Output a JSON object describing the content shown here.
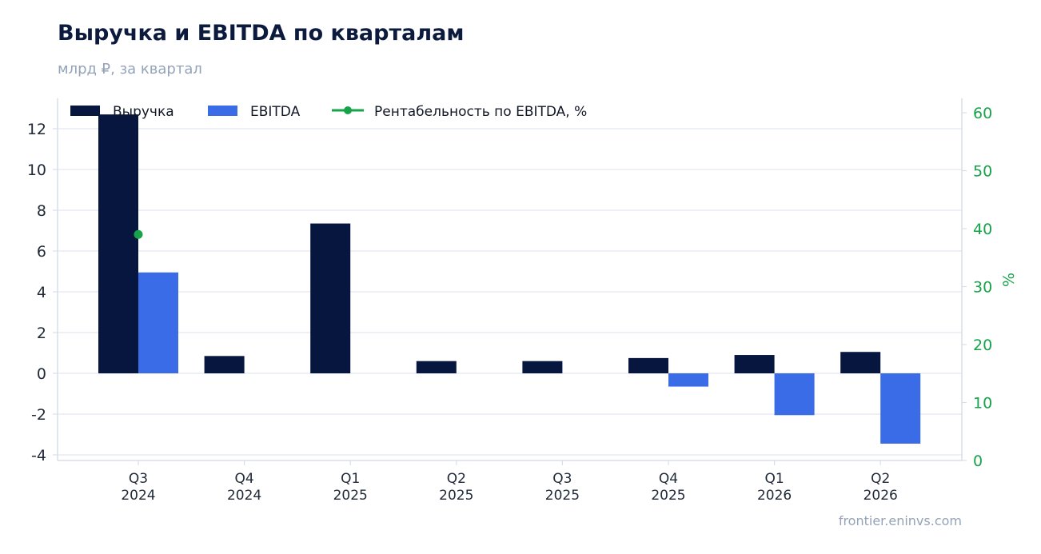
{
  "header": {
    "title": "Выручка и EBITDA по кварталам",
    "subtitle": "млрд ₽, за квартал"
  },
  "footer": {
    "source": "frontier.eninvs.com"
  },
  "colors": {
    "revenue": "#06163f",
    "ebitda": "#3b6ce8",
    "margin": "#16a34a",
    "grid": "#e2e8f0",
    "axis": "#d8dee9",
    "tick_left": "#1f2937",
    "tick_right": "#16a34a"
  },
  "chart_data": {
    "type": "bar",
    "categories": [
      [
        "Q3",
        "2024"
      ],
      [
        "Q4",
        "2024"
      ],
      [
        "Q1",
        "2025"
      ],
      [
        "Q2",
        "2025"
      ],
      [
        "Q3",
        "2025"
      ],
      [
        "Q4",
        "2025"
      ],
      [
        "Q1",
        "2026"
      ],
      [
        "Q2",
        "2026"
      ]
    ],
    "series": [
      {
        "name": "Выручка",
        "kind": "bar",
        "axis": "left",
        "values": [
          12.7,
          0.85,
          7.35,
          0.6,
          0.6,
          0.75,
          0.9,
          1.05
        ]
      },
      {
        "name": "EBITDA",
        "kind": "bar",
        "axis": "left",
        "values": [
          4.95,
          null,
          null,
          null,
          null,
          -0.65,
          -2.05,
          -3.45
        ]
      },
      {
        "name": "Рентабельность по EBITDA, %",
        "kind": "line",
        "axis": "right",
        "values": [
          39,
          null,
          null,
          null,
          null,
          null,
          null,
          null
        ]
      }
    ],
    "ylim": [
      -4.2,
      13.4
    ],
    "y2lim": [
      0,
      62
    ],
    "yticks": [
      "12",
      "10",
      "8",
      "6",
      "4",
      "2",
      "0",
      "-2",
      "-4"
    ],
    "y2ticks": [
      "60",
      "50",
      "40",
      "30",
      "20",
      "10",
      "0"
    ],
    "ylabel": "",
    "y2label": "%",
    "grid": true,
    "legend_position": "top-left"
  }
}
